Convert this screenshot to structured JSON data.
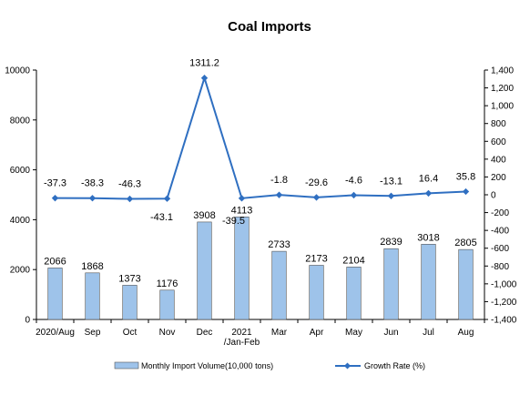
{
  "chart_data": {
    "type": "bar",
    "title": "Coal Imports",
    "categories": [
      [
        "2020/Aug"
      ],
      [
        "Sep"
      ],
      [
        "Oct"
      ],
      [
        "Nov"
      ],
      [
        "Dec"
      ],
      [
        "2021",
        "/Jan-Feb"
      ],
      [
        "Mar"
      ],
      [
        "Apr"
      ],
      [
        "May"
      ],
      [
        "Jun"
      ],
      [
        "Jul"
      ],
      [
        "Aug"
      ]
    ],
    "series": [
      {
        "name": "Monthly Import Volume(10,000 tons)",
        "type": "bar",
        "axis": "left",
        "color": "#9ec3ea",
        "values": [
          2066,
          1868,
          1373,
          1176,
          3908,
          4113,
          2733,
          2173,
          2104,
          2839,
          3018,
          2805
        ],
        "labels": [
          "2066",
          "1868",
          "1373",
          "1176",
          "3908",
          "4113",
          "2733",
          "2173",
          "2104",
          "2839",
          "3018",
          "2805"
        ]
      },
      {
        "name": "Growth Rate (%)",
        "type": "line",
        "axis": "right",
        "color": "#2f6fc1",
        "values": [
          -37.3,
          -38.3,
          -46.3,
          -43.1,
          1311.2,
          -39.5,
          -1.8,
          -29.6,
          -4.6,
          -13.1,
          16.4,
          35.8
        ],
        "labels": [
          "-37.3",
          "-38.3",
          "-46.3",
          "-43.1",
          "1311.2",
          "-39.5",
          "-1.8",
          "-29.6",
          "-4.6",
          "-13.1",
          "16.4",
          "35.8"
        ]
      }
    ],
    "y_left": {
      "min": 0,
      "max": 10000,
      "ticks": [
        0,
        2000,
        4000,
        6000,
        8000,
        10000
      ],
      "tick_labels": [
        "0",
        "2000",
        "4000",
        "6000",
        "8000",
        "10000"
      ]
    },
    "y_right": {
      "min": -1400,
      "max": 1400,
      "ticks": [
        -1400,
        -1200,
        -1000,
        -800,
        -600,
        -400,
        -200,
        0,
        200,
        400,
        600,
        800,
        1000,
        1200,
        1400
      ],
      "tick_labels": [
        "-1,400",
        "-1,200",
        "-1,000",
        "-800",
        "-600",
        "-400",
        "-200",
        "0",
        "200",
        "400",
        "600",
        "800",
        "1,000",
        "1,200",
        "1,400"
      ]
    },
    "grid": false,
    "legend_position": "bottom"
  }
}
